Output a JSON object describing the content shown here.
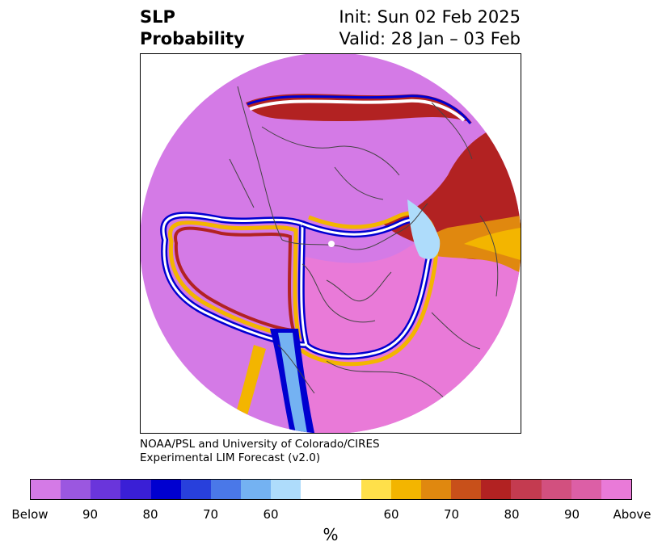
{
  "title": {
    "left_line1": "SLP",
    "left_line2": "Probability",
    "right_line1": "Init: Sun 02 Feb 2025",
    "right_line2": "Valid: 28 Jan – 03 Feb"
  },
  "credit": {
    "line1": "NOAA/PSL and University of Colorado/CIRES",
    "line2": "Experimental LIM Forecast (v2.0)"
  },
  "colorbar": {
    "colors": [
      "#d47ae6",
      "#9b57e0",
      "#6a35db",
      "#3a1fd6",
      "#0000d0",
      "#2840dc",
      "#4a78e8",
      "#74b2f2",
      "#aedcfb",
      "#ffffff",
      "#ffe04a",
      "#f3b500",
      "#e0880f",
      "#c8501a",
      "#b22222",
      "#c43b50",
      "#d2507f",
      "#dc5fa6",
      "#e97ad8"
    ],
    "ticks": [
      "Below",
      "90",
      "80",
      "70",
      "60",
      "60",
      "70",
      "80",
      "90",
      "Above"
    ],
    "unit": "%"
  },
  "map": {
    "colors": {
      "below_far": "#d47ae6",
      "below_mid": "#9b57e0",
      "blue_dark": "#0000d0",
      "blue_light": "#74b2f2",
      "white": "#ffffff",
      "yellow": "#f3b500",
      "orange": "#e0880f",
      "red": "#b22222",
      "above_far": "#e97ad8",
      "coast": "#444444"
    }
  }
}
